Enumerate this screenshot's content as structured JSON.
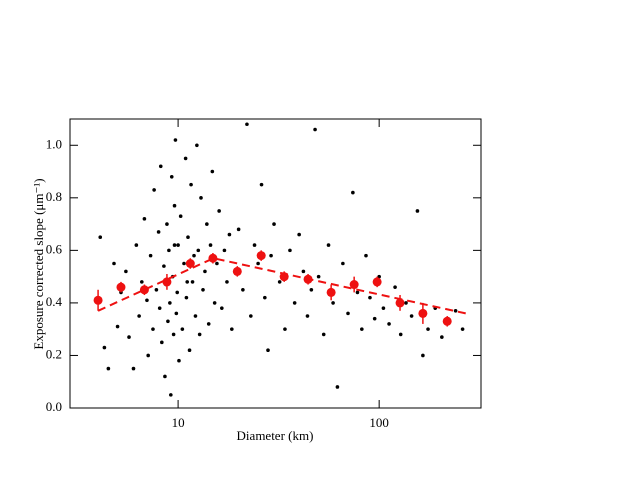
{
  "chart_data": {
    "type": "scatter",
    "x_label": "Diameter (km)",
    "y_label": "Exposure corrected slope (μm⁻¹)",
    "log_x": true,
    "xlim": [
      2.9,
      321
    ],
    "xticks": [
      10,
      100
    ],
    "ylim": [
      0,
      1.1
    ],
    "yticks": [
      {
        "value": 0,
        "label": "0.0"
      },
      0.2,
      0.4,
      0.6,
      0.8,
      {
        "value": 1,
        "label": "1.0"
      }
    ],
    "scatter": {
      "color": "#000000",
      "x": [
        4.1,
        4.3,
        4.5,
        4.8,
        5.0,
        5.2,
        5.5,
        5.7,
        6.0,
        6.2,
        6.4,
        6.6,
        6.8,
        7.0,
        7.1,
        7.3,
        7.5,
        7.6,
        7.8,
        8.0,
        8.1,
        8.2,
        8.3,
        8.5,
        8.6,
        8.7,
        8.8,
        8.9,
        9.0,
        9.1,
        9.2,
        9.3,
        9.4,
        9.5,
        9.6,
        9.7,
        9.8,
        9.9,
        10.0,
        10.1,
        10.3,
        10.5,
        10.7,
        10.9,
        11.0,
        11.2,
        11.4,
        11.6,
        11.8,
        12.0,
        12.2,
        12.4,
        12.6,
        12.8,
        13.0,
        13.3,
        13.6,
        13.9,
        14.2,
        14.5,
        14.8,
        15.2,
        15.6,
        16.0,
        16.5,
        17.0,
        17.5,
        18.0,
        18.5,
        19.2,
        20,
        21,
        22,
        23,
        24,
        25,
        26,
        27,
        28,
        29,
        30,
        32,
        34,
        36,
        38,
        40,
        42,
        44,
        46,
        48,
        50,
        53,
        56,
        59,
        62,
        66,
        70,
        74,
        78,
        82,
        86,
        90,
        95,
        100,
        105,
        112,
        120,
        128,
        136,
        145,
        155,
        165,
        175,
        190,
        205,
        220,
        240,
        260,
        11.1,
        9.6
      ],
      "y": [
        0.65,
        0.23,
        0.15,
        0.55,
        0.31,
        0.44,
        0.52,
        0.27,
        0.15,
        0.62,
        0.35,
        0.48,
        0.72,
        0.41,
        0.2,
        0.58,
        0.3,
        0.83,
        0.45,
        0.67,
        0.38,
        0.92,
        0.25,
        0.54,
        0.12,
        0.47,
        0.7,
        0.33,
        0.6,
        0.4,
        0.05,
        0.88,
        0.5,
        0.28,
        0.77,
        1.02,
        0.36,
        0.44,
        0.62,
        0.18,
        0.73,
        0.3,
        0.55,
        0.95,
        0.42,
        0.65,
        0.22,
        0.85,
        0.48,
        0.58,
        0.35,
        1.0,
        0.6,
        0.28,
        0.8,
        0.45,
        0.52,
        0.7,
        0.32,
        0.62,
        0.9,
        0.4,
        0.55,
        0.75,
        0.38,
        0.6,
        0.48,
        0.66,
        0.3,
        0.52,
        0.68,
        0.45,
        1.08,
        0.35,
        0.62,
        0.55,
        0.85,
        0.42,
        0.22,
        0.58,
        0.7,
        0.48,
        0.3,
        0.6,
        0.4,
        0.66,
        0.52,
        0.35,
        0.45,
        1.06,
        0.5,
        0.28,
        0.62,
        0.4,
        0.08,
        0.55,
        0.36,
        0.82,
        0.44,
        0.3,
        0.58,
        0.42,
        0.34,
        0.5,
        0.38,
        0.32,
        0.46,
        0.28,
        0.4,
        0.35,
        0.75,
        0.2,
        0.3,
        0.38,
        0.27,
        0.34,
        0.37,
        0.3,
        0.48,
        0.62
      ]
    },
    "binned": {
      "color": "#ee1111",
      "x": [
        4.0,
        5.2,
        6.8,
        8.8,
        11.5,
        14.9,
        19.7,
        25.9,
        33.7,
        44.3,
        57.7,
        75.1,
        97.7,
        127,
        165,
        218
      ],
      "y": [
        0.41,
        0.46,
        0.45,
        0.48,
        0.55,
        0.57,
        0.52,
        0.58,
        0.5,
        0.49,
        0.44,
        0.47,
        0.48,
        0.4,
        0.36,
        0.33
      ],
      "errors": [
        0.04,
        0.02,
        0.02,
        0.03,
        0.02,
        0.02,
        0.02,
        0.02,
        0.02,
        0.02,
        0.03,
        0.03,
        0.02,
        0.03,
        0.04,
        0.02
      ]
    },
    "fit": {
      "color": "#ee1111",
      "x": [
        4,
        15,
        270
      ],
      "y": [
        0.37,
        0.57,
        0.36
      ]
    }
  }
}
